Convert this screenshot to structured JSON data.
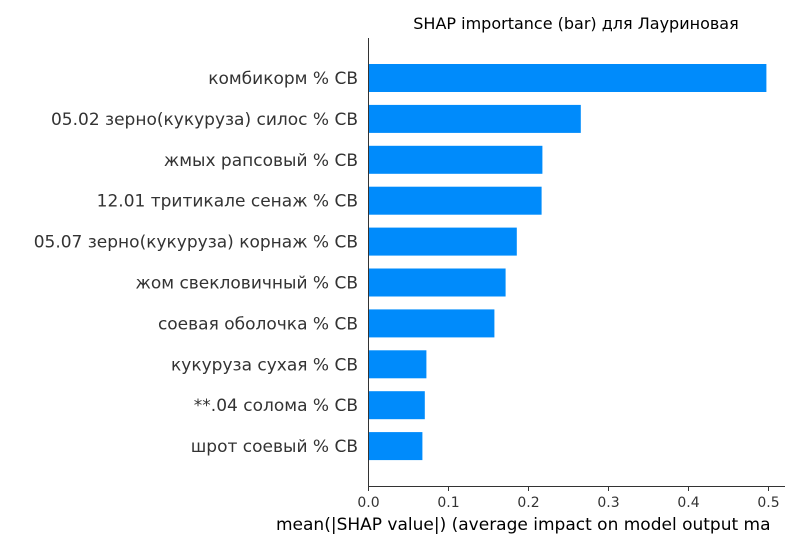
{
  "chart_data": {
    "type": "bar",
    "orientation": "horizontal",
    "title": "SHAP importance (bar) для Лауриновая",
    "xlabel": "mean(|SHAP value|) (average impact on model output ma",
    "ylabel": "",
    "xlim": [
      0,
      0.52
    ],
    "xticks": [
      "0.0",
      "0.1",
      "0.2",
      "0.3",
      "0.4",
      "0.5"
    ],
    "grid": false,
    "bar_color": "#008bfb",
    "categories": [
      "комбикорм % СВ",
      "05.02 зерно(кукуруза) силос % СВ",
      "жмых рапсовый % СВ",
      "12.01 тритикале сенаж % СВ",
      "05.07 зерно(кукуруза) корнаж % СВ",
      "жом свекловичный % СВ",
      "соевая оболочка % СВ",
      "кукуруза сухая % СВ",
      "**.04 солома % СВ",
      "шрот соевый % СВ"
    ],
    "values": [
      0.498,
      0.266,
      0.218,
      0.217,
      0.186,
      0.172,
      0.158,
      0.073,
      0.071,
      0.068
    ]
  }
}
